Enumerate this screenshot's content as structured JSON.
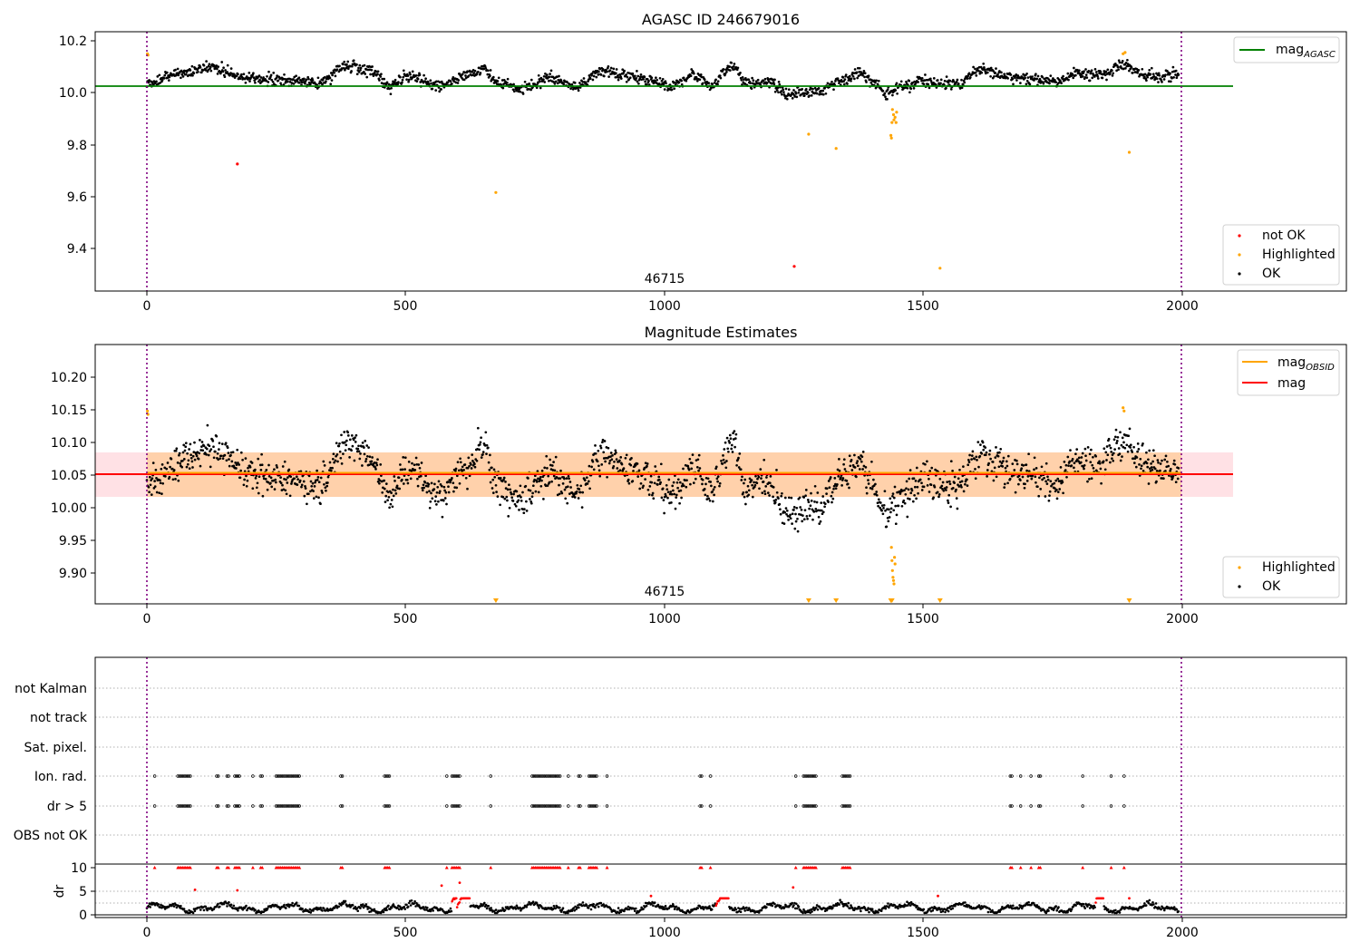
{
  "panels": {
    "top": {
      "title": "AGASC ID 246679016",
      "annotation": "46715",
      "x_ticks": [
        "0",
        "500",
        "1000",
        "1500",
        "2000"
      ],
      "y_ticks": [
        "9.4",
        "9.6",
        "9.8",
        "10.0",
        "10.2"
      ],
      "legend_upper": {
        "label": "mag",
        "subscript": "AGASC",
        "color": "#008000"
      },
      "legend_lower": [
        {
          "label": "not OK",
          "color": "#ff0000"
        },
        {
          "label": "Highlighted",
          "color": "#ffa500"
        },
        {
          "label": "OK",
          "color": "#000000"
        }
      ]
    },
    "middle": {
      "title": "Magnitude Estimates",
      "annotation": "46715",
      "x_ticks": [
        "0",
        "500",
        "1000",
        "1500",
        "2000"
      ],
      "y_ticks": [
        "9.90",
        "9.95",
        "10.00",
        "10.05",
        "10.10",
        "10.15",
        "10.20"
      ],
      "legend_upper": [
        {
          "label": "mag",
          "subscript": "OBSID",
          "color": "#ffa500"
        },
        {
          "label": "mag",
          "subscript": "",
          "color": "#ff0000"
        }
      ],
      "legend_lower": [
        {
          "label": "Highlighted",
          "color": "#ffa500"
        },
        {
          "label": "OK",
          "color": "#000000"
        }
      ]
    },
    "bottom": {
      "flag_labels": [
        "not Kalman",
        "not track",
        "Sat. pixel.",
        "Ion. rad.",
        "dr > 5",
        "OBS not OK"
      ],
      "dr_label": "dr",
      "dr_ticks": [
        "0",
        "5",
        "10"
      ],
      "x_ticks": [
        "0",
        "500",
        "1000",
        "1500",
        "2000"
      ]
    }
  },
  "chart_data": [
    {
      "type": "scatter",
      "title": "AGASC ID 246679016",
      "xlim": [
        -100,
        2320
      ],
      "ylim": [
        9.23,
        10.23
      ],
      "x_ticks": [
        0,
        500,
        1000,
        1500,
        2000
      ],
      "y_ticks": [
        9.4,
        9.6,
        9.8,
        10.0,
        10.2
      ],
      "obsid_boundaries": [
        0,
        1996
      ],
      "obsid_label": {
        "text": "46715",
        "x": 1000
      },
      "mag_agasc": 10.025,
      "mag_agasc_extent": [
        -100,
        2100
      ],
      "series": [
        {
          "name": "OK",
          "color": "#000000",
          "points": "~2000 samples, mean ~10.05, range ~9.97 to 10.14"
        },
        {
          "name": "Highlighted",
          "color": "#ffa500",
          "points": [
            [
              1,
              10.145
            ],
            [
              2,
              10.14
            ],
            [
              675,
              9.61
            ],
            [
              1280,
              9.835
            ],
            [
              1333,
              9.78
            ],
            [
              1439,
              9.83
            ],
            [
              1440,
              9.82
            ],
            [
              1441,
              9.88
            ],
            [
              1442,
              9.93
            ],
            [
              1444,
              9.91
            ],
            [
              1445,
              9.89
            ],
            [
              1447,
              9.9
            ],
            [
              1449,
              9.88
            ],
            [
              1450,
              9.92
            ],
            [
              1534,
              9.318
            ],
            [
              1888,
              10.145
            ],
            [
              1892,
              10.15
            ],
            [
              1900,
              9.765
            ]
          ]
        },
        {
          "name": "not OK",
          "color": "#ff0000",
          "points": [
            [
              175,
              9.72
            ],
            [
              1252,
              9.325
            ]
          ]
        }
      ],
      "legend": [
        "mag_AGASC",
        "not OK",
        "Highlighted",
        "OK"
      ]
    },
    {
      "type": "scatter",
      "title": "Magnitude Estimates",
      "xlim": [
        -100,
        2320
      ],
      "ylim": [
        9.855,
        10.245
      ],
      "x_ticks": [
        0,
        500,
        1000,
        1500,
        2000
      ],
      "y_ticks": [
        9.9,
        9.95,
        10.0,
        10.05,
        10.1,
        10.15,
        10.2
      ],
      "mag": 10.05,
      "mag_band": [
        10.018,
        10.083
      ],
      "mag_obsid": 10.052,
      "mag_obsid_band": [
        10.017,
        10.085
      ],
      "series": [
        {
          "name": "OK",
          "color": "#000000",
          "points": "~2000 samples, mean ~10.05, range ~9.96 to 10.14"
        },
        {
          "name": "Highlighted",
          "color": "#ffa500",
          "points": [
            [
              1,
              10.145
            ],
            [
              2,
              10.14
            ],
            [
              1440,
              9.94
            ],
            [
              1441,
              9.92
            ],
            [
              1442,
              9.905
            ],
            [
              1443,
              9.895
            ],
            [
              1444,
              9.89
            ],
            [
              1445,
              9.885
            ],
            [
              1446,
              9.925
            ],
            [
              1447,
              9.915
            ],
            [
              1888,
              10.15
            ],
            [
              1890,
              10.145
            ]
          ]
        },
        {
          "name": "Highlighted (below axis)",
          "color": "#ffa500",
          "x": [
            675,
            1280,
            1333,
            1439,
            1441,
            1534,
            1900
          ]
        }
      ],
      "legend": [
        "mag_OBSID",
        "mag",
        "Highlighted",
        "OK"
      ]
    },
    {
      "type": "scatter",
      "title": "",
      "flags": [
        "not Kalman",
        "not track",
        "Sat. pixel.",
        "Ion. rad.",
        "dr > 5",
        "OBS not OK"
      ],
      "flag_events": {
        "Ion. rad.": "same times as dr > 5",
        "dr > 5": [
          [
            15,
            15
          ],
          [
            60,
            85
          ],
          [
            135,
            140
          ],
          [
            155,
            160
          ],
          [
            170,
            180
          ],
          [
            205,
            205
          ],
          [
            220,
            225
          ],
          [
            250,
            295
          ],
          [
            375,
            378
          ],
          [
            460,
            470
          ],
          [
            580,
            582
          ],
          [
            590,
            605
          ],
          [
            665,
            665
          ],
          [
            745,
            800
          ],
          [
            815,
            815
          ],
          [
            835,
            840
          ],
          [
            855,
            870
          ],
          [
            890,
            890
          ],
          [
            1070,
            1075
          ],
          [
            1090,
            1090
          ],
          [
            1255,
            1255
          ],
          [
            1270,
            1295
          ],
          [
            1345,
            1360
          ],
          [
            1670,
            1675
          ],
          [
            1690,
            1690
          ],
          [
            1710,
            1710
          ],
          [
            1725,
            1730
          ],
          [
            1810,
            1810
          ],
          [
            1865,
            1865
          ],
          [
            1890,
            1890
          ]
        ]
      },
      "dr": {
        "ylim": [
          -0.5,
          10.5
        ],
        "y_ticks": [
          0,
          5,
          10
        ],
        "series": "~2000 samples, mostly 0.5 to 2.5, clipped at 10",
        "spikes": [
          [
            93,
            5.3
          ],
          [
            175,
            5.2
          ],
          [
            570,
            6.2
          ],
          [
            605,
            6.8
          ],
          [
            975,
            4.0
          ],
          [
            1250,
            5.8
          ],
          [
            1530,
            4.0
          ],
          [
            1900,
            3.5
          ]
        ]
      },
      "xlim": [
        -100,
        2320
      ],
      "x_ticks": [
        0,
        500,
        1000,
        1500,
        2000
      ]
    }
  ]
}
